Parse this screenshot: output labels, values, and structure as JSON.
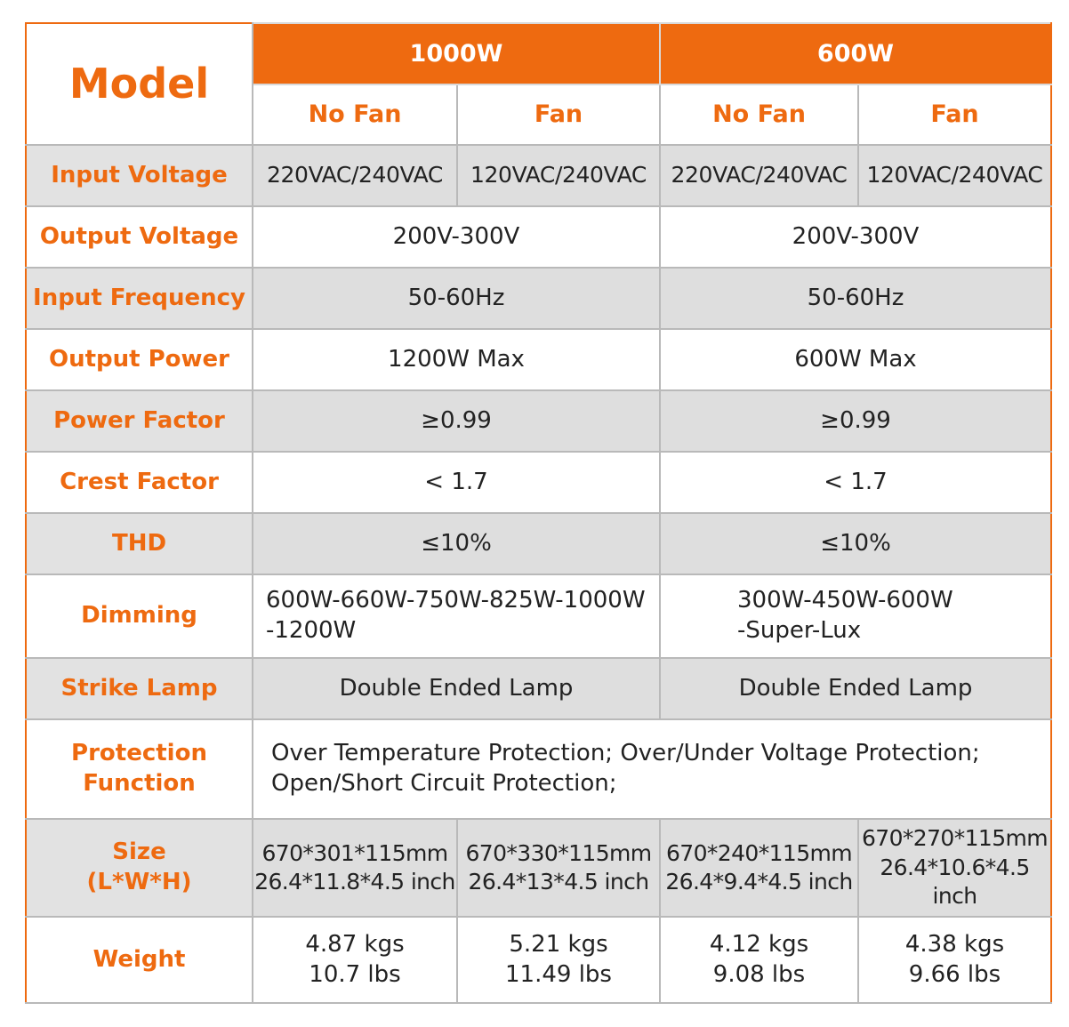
{
  "header": {
    "model_label": "Model",
    "groups": [
      "1000W",
      "600W"
    ],
    "subheaders": [
      "No Fan",
      "Fan",
      "No Fan",
      "Fan"
    ]
  },
  "rows": {
    "input_voltage": {
      "label": "Input Voltage",
      "values": [
        "220VAC/240VAC",
        "120VAC/240VAC",
        "220VAC/240VAC",
        "120VAC/240VAC"
      ]
    },
    "output_voltage": {
      "label": "Output Voltage",
      "values": [
        "200V-300V",
        "200V-300V"
      ]
    },
    "input_frequency": {
      "label": "Input Frequency",
      "values": [
        "50-60Hz",
        "50-60Hz"
      ]
    },
    "output_power": {
      "label": "Output Power",
      "values": [
        "1200W Max",
        "600W Max"
      ]
    },
    "power_factor": {
      "label": "Power Factor",
      "values": [
        "≥0.99",
        "≥0.99"
      ]
    },
    "crest_factor": {
      "label": "Crest Factor",
      "values": [
        "< 1.7",
        "< 1.7"
      ]
    },
    "thd": {
      "label": "THD",
      "values": [
        "≤10%",
        "≤10%"
      ]
    },
    "dimming": {
      "label": "Dimming",
      "values": [
        [
          "600W-660W-750W-825W-1000W",
          "-1200W"
        ],
        [
          "300W-450W-600W",
          "-Super-Lux"
        ]
      ]
    },
    "strike_lamp": {
      "label": "Strike Lamp",
      "values": [
        "Double Ended Lamp",
        "Double Ended Lamp"
      ]
    },
    "protection": {
      "label": [
        "Protection",
        "Function"
      ],
      "lines": [
        "Over Temperature Protection;  Over/Under Voltage Protection;",
        "Open/Short Circuit Protection;"
      ]
    },
    "size": {
      "label": [
        "Size",
        "(L*W*H)"
      ],
      "values": [
        [
          "670*301*115mm",
          "26.4*11.8*4.5 inch"
        ],
        [
          "670*330*115mm",
          "26.4*13*4.5 inch"
        ],
        [
          "670*240*115mm",
          "26.4*9.4*4.5 inch"
        ],
        [
          "670*270*115mm",
          "26.4*10.6*4.5 inch"
        ]
      ]
    },
    "weight": {
      "label": "Weight",
      "values": [
        [
          "4.87 kgs",
          "10.7 lbs"
        ],
        [
          "5.21 kgs",
          "11.49 lbs"
        ],
        [
          "4.12 kgs",
          "9.08 lbs"
        ],
        [
          "4.38 kgs",
          "9.66 lbs"
        ]
      ]
    }
  },
  "colors": {
    "accent": "#ee6a10",
    "row_gray": "#dedede",
    "border": "#b9b9b9"
  }
}
